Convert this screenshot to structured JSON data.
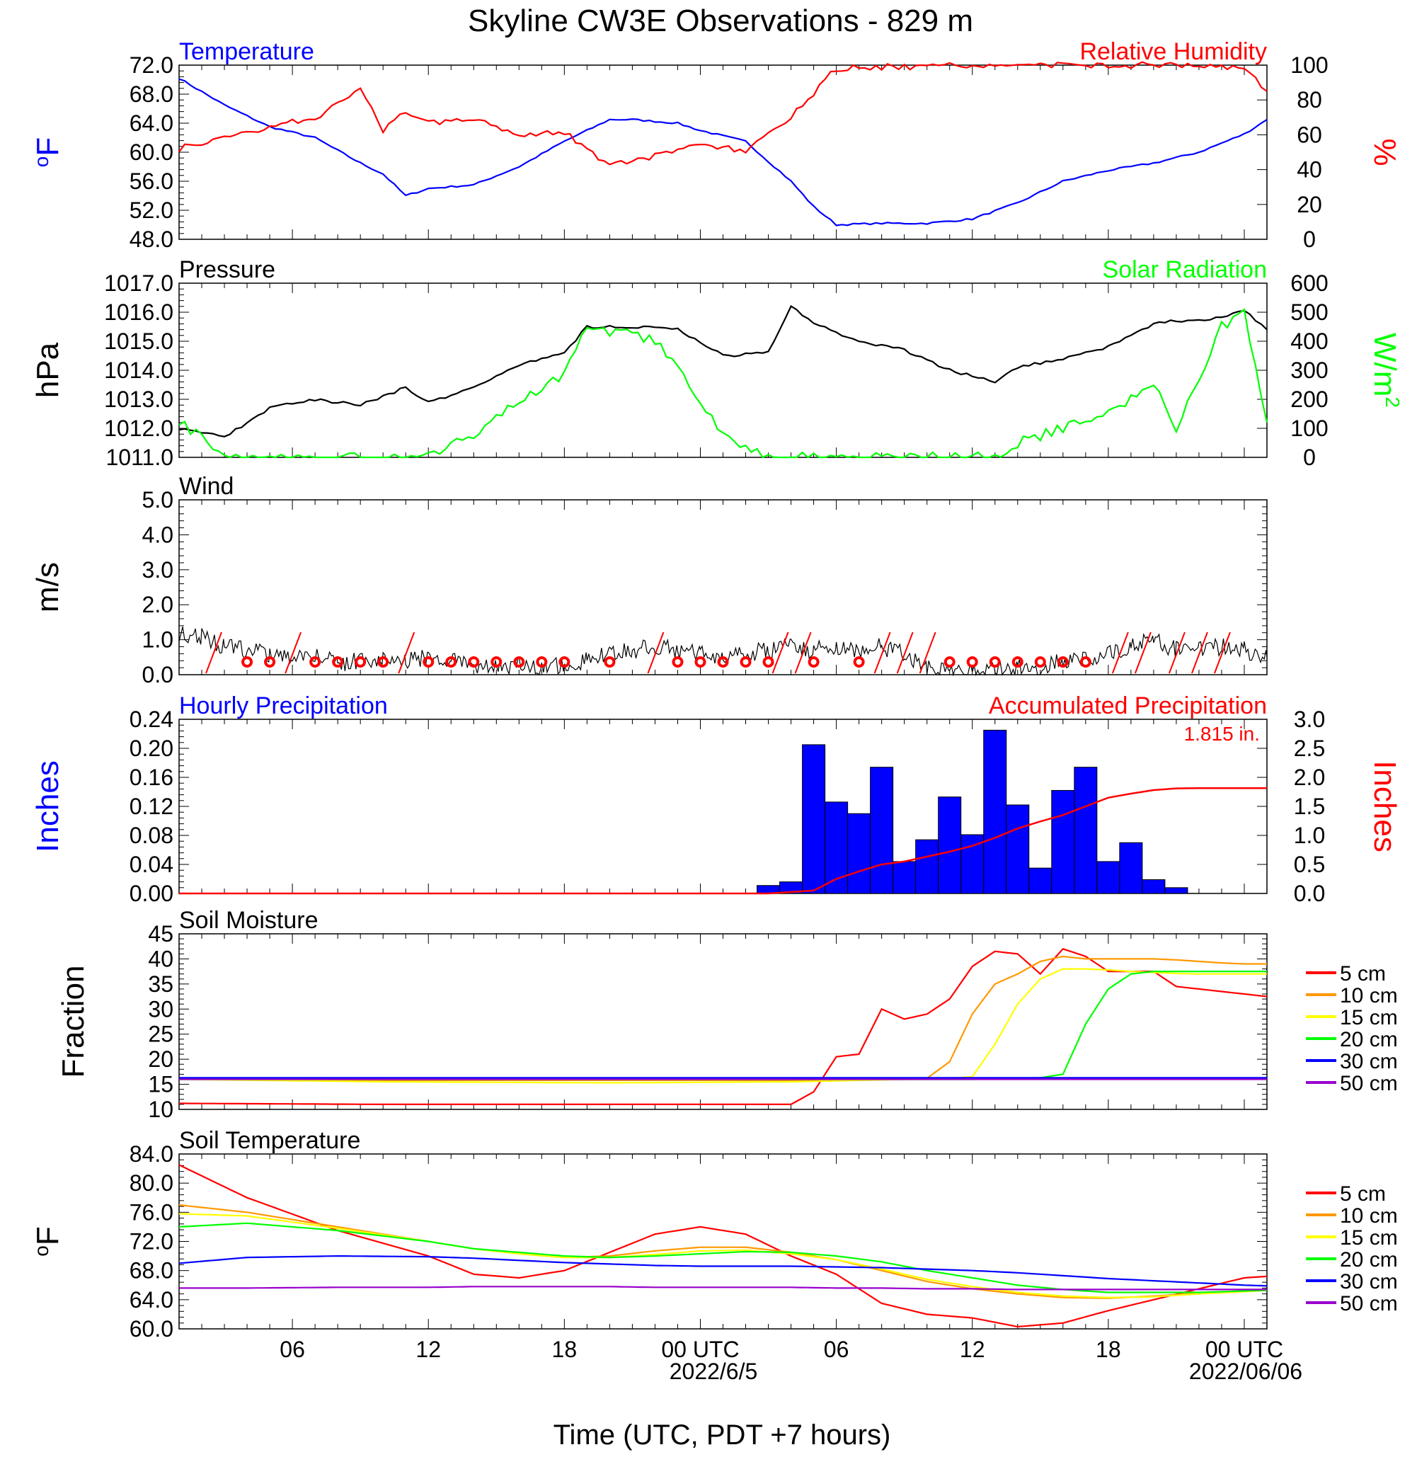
{
  "title": "Skyline CW3E Observations - 829 m",
  "x_axis": {
    "ticks": [
      "06",
      "12",
      "18",
      "00 UTC",
      "06",
      "12",
      "18",
      "00 UTC"
    ],
    "date_labels": [
      "2022/6/5",
      "2022/06/06"
    ],
    "label": "Time (UTC, PDT +7 hours)"
  },
  "colors": {
    "blue": "#0000ff",
    "red": "#ff0000",
    "green": "#00ff00",
    "black": "#000000",
    "orange": "#ff9900",
    "yellow": "#ffff00",
    "purple": "#9900cc"
  },
  "legend_depths": [
    "5 cm",
    "10 cm",
    "15 cm",
    "20 cm",
    "30 cm",
    "50 cm"
  ],
  "chart_data": [
    {
      "type": "line",
      "left_title": "Temperature",
      "right_title": "Relative Humidity",
      "ylabel_left": "oF",
      "ylabel_right": "%",
      "ylim_left": [
        48,
        72
      ],
      "ylim_right": [
        0,
        100
      ],
      "yticks_left": [
        "48.0",
        "52.0",
        "56.0",
        "60.0",
        "64.0",
        "68.0",
        "72.0"
      ],
      "yticks_right": [
        "0",
        "20",
        "40",
        "60",
        "80",
        "100"
      ],
      "x_hours": [
        1,
        3,
        5,
        7,
        9,
        10,
        11,
        12,
        14,
        16,
        18,
        20,
        21,
        23,
        24,
        26,
        28,
        29,
        30,
        32,
        34,
        36,
        38,
        40,
        42,
        44,
        46,
        48,
        49
      ],
      "series": [
        {
          "name": "Temperature",
          "axis": "left",
          "color": "blue",
          "values": [
            70.2,
            66.5,
            63.5,
            62.0,
            58.5,
            57.0,
            54.0,
            55.0,
            55.5,
            58.0,
            61.5,
            64.5,
            64.5,
            64.0,
            63.0,
            61.5,
            56.0,
            52.5,
            50.0,
            50.2,
            50.2,
            50.8,
            53.0,
            56.0,
            57.5,
            58.5,
            60.0,
            62.5,
            64.5
          ]
        },
        {
          "name": "Relative Humidity",
          "axis": "right",
          "color": "red",
          "values": [
            52,
            58,
            65,
            70,
            85,
            63,
            73,
            67,
            70,
            60,
            62,
            42,
            45,
            50,
            55,
            50,
            70,
            84,
            98,
            99,
            99,
            100,
            100,
            100,
            100,
            100,
            100,
            98,
            85
          ]
        }
      ]
    },
    {
      "type": "line",
      "left_title": "Pressure",
      "right_title": "Solar Radiation",
      "ylabel_left": "hPa",
      "ylabel_right": "W/m2",
      "ylim_left": [
        1011,
        1017
      ],
      "ylim_right": [
        0,
        600
      ],
      "yticks_left": [
        "1011.0",
        "1012.0",
        "1013.0",
        "1014.0",
        "1015.0",
        "1016.0",
        "1017.0"
      ],
      "yticks_right": [
        "0",
        "100",
        "200",
        "300",
        "400",
        "500",
        "600"
      ],
      "x_hours": [
        1,
        3,
        5,
        7,
        9,
        11,
        12,
        14,
        16,
        18,
        19,
        21,
        22,
        23,
        25,
        27,
        28,
        29,
        31,
        33,
        35,
        37,
        38,
        40,
        42,
        44,
        45,
        47,
        48,
        49
      ],
      "series": [
        {
          "name": "Pressure",
          "axis": "left",
          "color": "black",
          "values": [
            1012.0,
            1011.7,
            1012.7,
            1013.0,
            1012.8,
            1013.4,
            1012.9,
            1013.4,
            1014.2,
            1014.6,
            1015.5,
            1015.5,
            1015.5,
            1015.4,
            1014.5,
            1014.6,
            1016.2,
            1015.6,
            1015.0,
            1014.7,
            1014.0,
            1013.6,
            1014.1,
            1014.4,
            1014.8,
            1015.6,
            1015.7,
            1015.8,
            1016.1,
            1015.4
          ],
          "note": ""
        },
        {
          "name": "Solar Radiation",
          "axis": "right",
          "color": "green",
          "values": [
            130,
            0,
            0,
            0,
            0,
            0,
            0,
            80,
            200,
            280,
            450,
            420,
            400,
            300,
            80,
            0,
            0,
            0,
            0,
            0,
            0,
            0,
            50,
            100,
            150,
            250,
            100,
            450,
            500,
            120
          ]
        }
      ]
    },
    {
      "type": "line",
      "left_title": "Wind",
      "ylabel_left": "m/s",
      "ylim_left": [
        0,
        5
      ],
      "yticks_left": [
        "0.0",
        "1.0",
        "2.0",
        "3.0",
        "4.0",
        "5.0"
      ],
      "x_hours": [
        1,
        2,
        3,
        4,
        5,
        6,
        7,
        8,
        9,
        10,
        11,
        12,
        13,
        14,
        15,
        16,
        17,
        18,
        19,
        20,
        21,
        22,
        23,
        24,
        25,
        26,
        27,
        28,
        29,
        30,
        31,
        32,
        33,
        34,
        35,
        36,
        37,
        38,
        39,
        40,
        41,
        42,
        43,
        44,
        45,
        46,
        47,
        48,
        49
      ],
      "series": [
        {
          "name": "Wind",
          "color": "black",
          "values": [
            1.2,
            1.1,
            0.8,
            0.7,
            0.6,
            0.5,
            0.6,
            0.3,
            0.4,
            0.5,
            0.4,
            0.5,
            0.4,
            0.3,
            0.2,
            0.3,
            0.2,
            0.3,
            0.4,
            0.6,
            0.7,
            0.8,
            0.7,
            0.6,
            0.5,
            0.6,
            0.7,
            0.8,
            0.7,
            0.8,
            0.7,
            0.8,
            0.6,
            0.2,
            0.1,
            0.1,
            0.1,
            0.2,
            0.2,
            0.4,
            0.5,
            0.6,
            0.8,
            1.0,
            0.7,
            0.7,
            0.8,
            0.7,
            0.5
          ]
        }
      ],
      "calm_hours": [
        4,
        5,
        7,
        8,
        9,
        10,
        12,
        13,
        14,
        15,
        16,
        17,
        18,
        20,
        23,
        24,
        25,
        26,
        27,
        29,
        31,
        35,
        36,
        37,
        38,
        39,
        40,
        41
      ]
    },
    {
      "type": "bar",
      "left_title": "Hourly Precipitation",
      "right_title": "Accumulated Precipitation",
      "annotation": "1.815 in.",
      "ylabel_left": "Inches",
      "ylabel_right": "Inches",
      "ylim_left": [
        0,
        0.24
      ],
      "ylim_right": [
        0,
        3.0
      ],
      "yticks_left": [
        "0.00",
        "0.04",
        "0.08",
        "0.12",
        "0.16",
        "0.20",
        "0.24"
      ],
      "yticks_right": [
        "0.0",
        "0.5",
        "1.0",
        "1.5",
        "2.0",
        "2.5",
        "3.0"
      ],
      "bar_hours": [
        27,
        28,
        29,
        30,
        31,
        32,
        33,
        34,
        35,
        36,
        37,
        38,
        39,
        40,
        41,
        42,
        43,
        44,
        45,
        46
      ],
      "bar_values": [
        0.011,
        0.016,
        0.205,
        0.126,
        0.11,
        0.174,
        0.044,
        0.074,
        0.133,
        0.081,
        0.225,
        0.122,
        0.035,
        0.142,
        0.174,
        0.044,
        0.07,
        0.019,
        0.008,
        0.0
      ],
      "accum_hours": [
        1,
        27,
        29,
        30,
        31,
        32,
        33,
        35,
        36,
        37,
        38,
        39,
        40,
        41,
        42,
        43,
        44,
        45,
        46,
        49
      ],
      "accum_values": [
        0.0,
        0.0,
        0.05,
        0.25,
        0.38,
        0.5,
        0.55,
        0.72,
        0.82,
        0.96,
        1.12,
        1.24,
        1.35,
        1.5,
        1.65,
        1.72,
        1.78,
        1.81,
        1.815,
        1.815
      ]
    },
    {
      "type": "line",
      "left_title": "Soil Moisture",
      "ylabel_left": "Fraction",
      "ylim_left": [
        10,
        45
      ],
      "yticks_left": [
        "10",
        "15",
        "20",
        "25",
        "30",
        "35",
        "40",
        "45"
      ],
      "x_hours": [
        1,
        10,
        20,
        28,
        29,
        30,
        31,
        32,
        33,
        34,
        35,
        36,
        37,
        38,
        39,
        40,
        41,
        42,
        43,
        44,
        45,
        46,
        47,
        48,
        49
      ],
      "series": [
        {
          "name": "5 cm",
          "color": "red",
          "values": [
            11.2,
            11.0,
            11.0,
            11.0,
            13.5,
            20.5,
            21.0,
            30.0,
            28.0,
            29.0,
            32.0,
            38.5,
            41.5,
            41.0,
            37.0,
            42.0,
            40.5,
            37.5,
            37.5,
            37.5,
            34.5,
            34.0,
            33.5,
            33.0,
            32.5
          ]
        },
        {
          "name": "10 cm",
          "color": "orange",
          "values": [
            16.0,
            15.8,
            15.8,
            15.8,
            15.8,
            15.8,
            15.8,
            15.9,
            16.0,
            16.2,
            19.5,
            29.0,
            35.0,
            37.0,
            39.5,
            40.5,
            40.0,
            40.0,
            40.0,
            40.0,
            39.8,
            39.5,
            39.2,
            39.0,
            39.0
          ]
        },
        {
          "name": "15 cm",
          "color": "yellow",
          "values": [
            16.0,
            15.5,
            15.3,
            15.5,
            15.6,
            15.7,
            15.8,
            15.9,
            16.0,
            16.0,
            16.2,
            16.5,
            23.0,
            31.0,
            36.0,
            38.0,
            38.0,
            37.8,
            37.5,
            37.3,
            37.1,
            37.0,
            37.0,
            37.0,
            37.0
          ]
        },
        {
          "name": "20 cm",
          "color": "green",
          "values": [
            16.0,
            16.0,
            16.0,
            16.0,
            16.0,
            16.0,
            16.0,
            16.0,
            16.0,
            16.0,
            16.0,
            16.0,
            16.1,
            16.2,
            16.3,
            17.0,
            27.0,
            34.0,
            37.0,
            37.5,
            37.5,
            37.5,
            37.5,
            37.5,
            37.5
          ]
        },
        {
          "name": "30 cm",
          "color": "blue",
          "values": [
            16.3,
            16.3,
            16.3,
            16.3,
            16.3,
            16.3,
            16.3,
            16.3,
            16.3,
            16.3,
            16.3,
            16.3,
            16.3,
            16.3,
            16.3,
            16.3,
            16.3,
            16.3,
            16.3,
            16.3,
            16.3,
            16.3,
            16.3,
            16.3,
            16.3
          ]
        },
        {
          "name": "50 cm",
          "color": "purple",
          "values": [
            16.0,
            16.0,
            16.0,
            16.0,
            16.0,
            16.0,
            16.0,
            16.0,
            16.0,
            16.0,
            16.0,
            16.0,
            16.0,
            16.0,
            16.0,
            16.0,
            16.0,
            16.0,
            16.0,
            16.0,
            16.0,
            16.0,
            16.0,
            16.0,
            16.0
          ]
        }
      ]
    },
    {
      "type": "line",
      "left_title": "Soil Temperature",
      "ylabel_left": "oF",
      "ylim_left": [
        60,
        84
      ],
      "yticks_left": [
        "60.0",
        "64.0",
        "68.0",
        "72.0",
        "76.0",
        "80.0",
        "84.0"
      ],
      "x_hours": [
        1,
        4,
        8,
        12,
        14,
        16,
        18,
        20,
        22,
        24,
        26,
        28,
        30,
        32,
        34,
        36,
        38,
        40,
        42,
        44,
        46,
        48,
        49
      ],
      "series": [
        {
          "name": "5 cm",
          "color": "red",
          "values": [
            82.5,
            78.0,
            73.5,
            70.0,
            67.5,
            67.0,
            68.0,
            70.5,
            73.0,
            74.0,
            73.0,
            70.0,
            67.5,
            63.5,
            62.0,
            61.5,
            60.3,
            60.8,
            62.5,
            64.0,
            65.5,
            67.0,
            67.2
          ]
        },
        {
          "name": "10 cm",
          "color": "orange",
          "values": [
            77.0,
            76.0,
            74.0,
            72.0,
            71.0,
            70.3,
            69.8,
            70.0,
            70.7,
            71.2,
            71.2,
            70.5,
            69.5,
            68.0,
            66.5,
            65.5,
            64.8,
            64.3,
            64.2,
            64.5,
            64.9,
            65.2,
            65.4
          ]
        },
        {
          "name": "15 cm",
          "color": "yellow",
          "values": [
            75.8,
            75.5,
            73.8,
            72.0,
            71.0,
            70.3,
            69.8,
            69.8,
            70.2,
            70.7,
            70.8,
            70.3,
            69.5,
            68.2,
            66.8,
            65.8,
            65.0,
            64.5,
            64.3,
            64.4,
            64.8,
            65.1,
            65.3
          ]
        },
        {
          "name": "20 cm",
          "color": "green",
          "values": [
            74.0,
            74.5,
            73.5,
            72.0,
            71.0,
            70.5,
            70.0,
            69.8,
            70.0,
            70.3,
            70.6,
            70.5,
            70.0,
            69.2,
            68.0,
            67.0,
            66.0,
            65.4,
            65.0,
            65.0,
            65.0,
            65.2,
            65.3
          ]
        },
        {
          "name": "30 cm",
          "color": "blue",
          "values": [
            69.0,
            69.8,
            70.0,
            69.9,
            69.7,
            69.4,
            69.1,
            68.9,
            68.7,
            68.6,
            68.6,
            68.6,
            68.5,
            68.4,
            68.2,
            68.0,
            67.7,
            67.3,
            66.9,
            66.6,
            66.3,
            66.0,
            65.9
          ]
        },
        {
          "name": "50 cm",
          "color": "purple",
          "values": [
            65.6,
            65.6,
            65.7,
            65.7,
            65.8,
            65.8,
            65.8,
            65.8,
            65.7,
            65.7,
            65.7,
            65.7,
            65.6,
            65.6,
            65.5,
            65.5,
            65.4,
            65.4,
            65.4,
            65.4,
            65.4,
            65.4,
            65.4
          ]
        }
      ]
    }
  ]
}
